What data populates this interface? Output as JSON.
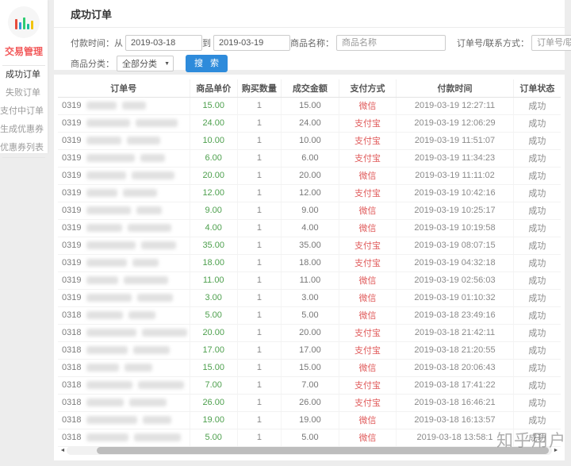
{
  "page": {
    "watermark": "知乎用户"
  },
  "colors": {
    "accent_blue": "#2e8bdb",
    "price_green": "#4ea04e",
    "payment_red": "#e05c5c",
    "sidebar_section_red": "#f2595a",
    "page_background": "#ededed"
  },
  "sidebar": {
    "logo_icon": "bar-chart-icon",
    "section_label": "交易管理",
    "items": [
      {
        "id": "success-orders",
        "label": "成功订单",
        "active": true
      },
      {
        "id": "failed-orders",
        "label": "失败订单",
        "active": false
      },
      {
        "id": "paying-orders",
        "label": "支付中订单",
        "active": false
      },
      {
        "id": "create-coupon",
        "label": "生成优惠券",
        "active": false
      },
      {
        "id": "coupon-list",
        "label": "优惠券列表",
        "active": false
      }
    ]
  },
  "header": {
    "title": "成功订单"
  },
  "filters": {
    "pay_time_label": "付款时间：从",
    "to_label": "到",
    "date_from": "2019-03-18",
    "date_to": "2019-03-19",
    "product_name_label": "商品名称：",
    "product_name_placeholder": "商品名称",
    "order_contact_label": "订单号/联系方式：",
    "order_contact_placeholder": "订单号/联系方式",
    "category_label": "商品分类：",
    "category_value": "全部分类",
    "dropdown_caret": "▼",
    "search_button": "搜 索"
  },
  "table": {
    "columns": [
      "订单号",
      "商品单价",
      "购买数量",
      "成交金额",
      "支付方式",
      "付款时间",
      "订单状态"
    ],
    "rows": [
      {
        "order_prefix": "0319",
        "unit_price": "15.00",
        "qty": "1",
        "amount": "15.00",
        "pay_method": "微信",
        "pay_time": "2019-03-19 12:27:11",
        "status": "成功"
      },
      {
        "order_prefix": "0319",
        "unit_price": "24.00",
        "qty": "1",
        "amount": "24.00",
        "pay_method": "支付宝",
        "pay_time": "2019-03-19 12:06:29",
        "status": "成功"
      },
      {
        "order_prefix": "0319",
        "unit_price": "10.00",
        "qty": "1",
        "amount": "10.00",
        "pay_method": "支付宝",
        "pay_time": "2019-03-19 11:51:07",
        "status": "成功"
      },
      {
        "order_prefix": "0319",
        "unit_price": "6.00",
        "qty": "1",
        "amount": "6.00",
        "pay_method": "支付宝",
        "pay_time": "2019-03-19 11:34:23",
        "status": "成功"
      },
      {
        "order_prefix": "0319",
        "unit_price": "20.00",
        "qty": "1",
        "amount": "20.00",
        "pay_method": "微信",
        "pay_time": "2019-03-19 11:11:02",
        "status": "成功"
      },
      {
        "order_prefix": "0319",
        "unit_price": "12.00",
        "qty": "1",
        "amount": "12.00",
        "pay_method": "支付宝",
        "pay_time": "2019-03-19 10:42:16",
        "status": "成功"
      },
      {
        "order_prefix": "0319",
        "unit_price": "9.00",
        "qty": "1",
        "amount": "9.00",
        "pay_method": "微信",
        "pay_time": "2019-03-19 10:25:17",
        "status": "成功"
      },
      {
        "order_prefix": "0319",
        "unit_price": "4.00",
        "qty": "1",
        "amount": "4.00",
        "pay_method": "微信",
        "pay_time": "2019-03-19 10:19:58",
        "status": "成功"
      },
      {
        "order_prefix": "0319",
        "unit_price": "35.00",
        "qty": "1",
        "amount": "35.00",
        "pay_method": "支付宝",
        "pay_time": "2019-03-19 08:07:15",
        "status": "成功"
      },
      {
        "order_prefix": "0319",
        "unit_price": "18.00",
        "qty": "1",
        "amount": "18.00",
        "pay_method": "支付宝",
        "pay_time": "2019-03-19 04:32:18",
        "status": "成功"
      },
      {
        "order_prefix": "0319",
        "unit_price": "11.00",
        "qty": "1",
        "amount": "11.00",
        "pay_method": "微信",
        "pay_time": "2019-03-19 02:56:03",
        "status": "成功"
      },
      {
        "order_prefix": "0319",
        "unit_price": "3.00",
        "qty": "1",
        "amount": "3.00",
        "pay_method": "微信",
        "pay_time": "2019-03-19 01:10:32",
        "status": "成功"
      },
      {
        "order_prefix": "0318",
        "unit_price": "5.00",
        "qty": "1",
        "amount": "5.00",
        "pay_method": "微信",
        "pay_time": "2019-03-18 23:49:16",
        "status": "成功"
      },
      {
        "order_prefix": "0318",
        "unit_price": "20.00",
        "qty": "1",
        "amount": "20.00",
        "pay_method": "支付宝",
        "pay_time": "2019-03-18 21:42:11",
        "status": "成功"
      },
      {
        "order_prefix": "0318",
        "unit_price": "17.00",
        "qty": "1",
        "amount": "17.00",
        "pay_method": "支付宝",
        "pay_time": "2019-03-18 21:20:55",
        "status": "成功"
      },
      {
        "order_prefix": "0318",
        "unit_price": "15.00",
        "qty": "1",
        "amount": "15.00",
        "pay_method": "微信",
        "pay_time": "2019-03-18 20:06:43",
        "status": "成功"
      },
      {
        "order_prefix": "0318",
        "unit_price": "7.00",
        "qty": "1",
        "amount": "7.00",
        "pay_method": "支付宝",
        "pay_time": "2019-03-18 17:41:22",
        "status": "成功"
      },
      {
        "order_prefix": "0318",
        "unit_price": "26.00",
        "qty": "1",
        "amount": "26.00",
        "pay_method": "支付宝",
        "pay_time": "2019-03-18 16:46:21",
        "status": "成功"
      },
      {
        "order_prefix": "0318",
        "unit_price": "19.00",
        "qty": "1",
        "amount": "19.00",
        "pay_method": "微信",
        "pay_time": "2019-03-18 16:13:57",
        "status": "成功"
      },
      {
        "order_prefix": "0318",
        "unit_price": "5.00",
        "qty": "1",
        "amount": "5.00",
        "pay_method": "微信",
        "pay_time": "2019-03-18 13:58:1",
        "status": "成功"
      }
    ]
  },
  "scrollbar": {
    "left_arrow": "◄",
    "right_arrow": "►"
  }
}
